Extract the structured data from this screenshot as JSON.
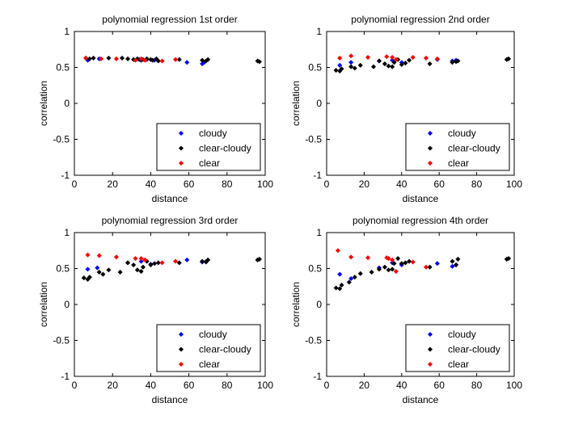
{
  "chart_data": [
    {
      "type": "scatter",
      "title": "polynomial regression 1st order",
      "xlabel": "distance",
      "ylabel": "correlation",
      "xlim": [
        0,
        100
      ],
      "ylim": [
        -1,
        1
      ],
      "xticks": [
        0,
        20,
        40,
        60,
        80,
        100
      ],
      "yticks": [
        -1,
        -0.5,
        0,
        0.5,
        1
      ],
      "grid": false,
      "legend_position": "bottom-right",
      "series": [
        {
          "name": "cloudy",
          "color": "#0000ff",
          "x": [
            7,
            13,
            34,
            38,
            42,
            59,
            67,
            68
          ],
          "y": [
            0.6,
            0.62,
            0.61,
            0.61,
            0.6,
            0.57,
            0.55,
            0.57
          ]
        },
        {
          "name": "clear-cloudy",
          "color": "#000000",
          "x": [
            6,
            8,
            10,
            18,
            25,
            28,
            31,
            33,
            35,
            36,
            38,
            40,
            41,
            43,
            44,
            55,
            67,
            69,
            70,
            96,
            97
          ],
          "y": [
            0.63,
            0.62,
            0.63,
            0.63,
            0.63,
            0.62,
            0.61,
            0.62,
            0.6,
            0.61,
            0.62,
            0.61,
            0.6,
            0.62,
            0.59,
            0.61,
            0.6,
            0.59,
            0.61,
            0.59,
            0.58
          ]
        },
        {
          "name": "clear",
          "color": "#ff0000",
          "x": [
            6,
            14,
            22,
            32,
            35,
            37,
            46,
            53
          ],
          "y": [
            0.63,
            0.62,
            0.62,
            0.6,
            0.62,
            0.6,
            0.59,
            0.61
          ]
        }
      ]
    },
    {
      "type": "scatter",
      "title": "polynomial regression 2nd order",
      "xlabel": "distance",
      "ylabel": "correlation",
      "xlim": [
        0,
        100
      ],
      "ylim": [
        -1,
        1
      ],
      "xticks": [
        0,
        20,
        40,
        60,
        80,
        100
      ],
      "yticks": [
        -1,
        -0.5,
        0,
        0.5,
        1
      ],
      "grid": false,
      "legend_position": "bottom-right",
      "series": [
        {
          "name": "cloudy",
          "color": "#0000ff",
          "x": [
            7,
            13,
            28,
            35,
            40,
            59,
            67,
            69
          ],
          "y": [
            0.53,
            0.57,
            0.59,
            0.6,
            0.57,
            0.61,
            0.59,
            0.6
          ]
        },
        {
          "name": "clear-cloudy",
          "color": "#000000",
          "x": [
            5,
            7,
            8,
            13,
            15,
            18,
            25,
            28,
            31,
            33,
            35,
            36,
            38,
            40,
            42,
            44,
            55,
            67,
            69,
            70,
            96,
            97
          ],
          "y": [
            0.46,
            0.45,
            0.48,
            0.51,
            0.49,
            0.53,
            0.51,
            0.59,
            0.55,
            0.52,
            0.51,
            0.57,
            0.61,
            0.54,
            0.56,
            0.6,
            0.55,
            0.57,
            0.58,
            0.59,
            0.61,
            0.62
          ]
        },
        {
          "name": "clear",
          "color": "#ff0000",
          "x": [
            7,
            13,
            22,
            32,
            35,
            37,
            46,
            53,
            59
          ],
          "y": [
            0.63,
            0.66,
            0.64,
            0.65,
            0.64,
            0.61,
            0.64,
            0.63,
            0.62
          ]
        }
      ]
    },
    {
      "type": "scatter",
      "title": "polynomial regression 3rd order",
      "xlabel": "distance",
      "ylabel": "correlation",
      "xlim": [
        0,
        100
      ],
      "ylim": [
        -1,
        1
      ],
      "xticks": [
        0,
        20,
        40,
        60,
        80,
        100
      ],
      "yticks": [
        -1,
        -0.5,
        0,
        0.5,
        1
      ],
      "grid": false,
      "legend_position": "bottom-right",
      "series": [
        {
          "name": "cloudy",
          "color": "#0000ff",
          "x": [
            7,
            12,
            28,
            35,
            40,
            59,
            67,
            69
          ],
          "y": [
            0.49,
            0.51,
            0.58,
            0.6,
            0.56,
            0.62,
            0.59,
            0.6
          ]
        },
        {
          "name": "clear-cloudy",
          "color": "#000000",
          "x": [
            5,
            7,
            8,
            13,
            15,
            18,
            24,
            28,
            31,
            33,
            35,
            36,
            38,
            40,
            42,
            44,
            55,
            67,
            69,
            70,
            96,
            97
          ],
          "y": [
            0.37,
            0.35,
            0.38,
            0.45,
            0.42,
            0.48,
            0.45,
            0.58,
            0.55,
            0.48,
            0.46,
            0.52,
            0.6,
            0.55,
            0.57,
            0.58,
            0.58,
            0.6,
            0.59,
            0.62,
            0.62,
            0.63
          ]
        },
        {
          "name": "clear",
          "color": "#ff0000",
          "x": [
            7,
            13,
            22,
            32,
            35,
            37,
            46,
            53
          ],
          "y": [
            0.69,
            0.68,
            0.66,
            0.64,
            0.64,
            0.62,
            0.58,
            0.6
          ]
        }
      ]
    },
    {
      "type": "scatter",
      "title": "polynomial regression 4th order",
      "xlabel": "distance",
      "ylabel": "correlation",
      "xlim": [
        0,
        100
      ],
      "ylim": [
        -1,
        1
      ],
      "xticks": [
        0,
        20,
        40,
        60,
        80,
        100
      ],
      "yticks": [
        -1,
        -0.5,
        0,
        0.5,
        1
      ],
      "grid": false,
      "legend_position": "bottom-right",
      "series": [
        {
          "name": "cloudy",
          "color": "#0000ff",
          "x": [
            7,
            13,
            28,
            35,
            40,
            59,
            67,
            69
          ],
          "y": [
            0.42,
            0.36,
            0.51,
            0.58,
            0.55,
            0.57,
            0.53,
            0.55
          ]
        },
        {
          "name": "clear-cloudy",
          "color": "#000000",
          "x": [
            5,
            7,
            8,
            12,
            15,
            18,
            24,
            28,
            31,
            33,
            35,
            36,
            38,
            40,
            42,
            44,
            55,
            67,
            69,
            70,
            96,
            97
          ],
          "y": [
            0.23,
            0.22,
            0.27,
            0.31,
            0.38,
            0.43,
            0.45,
            0.49,
            0.52,
            0.48,
            0.49,
            0.57,
            0.64,
            0.57,
            0.58,
            0.6,
            0.52,
            0.6,
            0.55,
            0.63,
            0.63,
            0.64
          ]
        },
        {
          "name": "clear",
          "color": "#ff0000",
          "x": [
            6,
            13,
            22,
            32,
            33,
            35,
            37,
            46,
            53
          ],
          "y": [
            0.75,
            0.66,
            0.65,
            0.65,
            0.64,
            0.62,
            0.46,
            0.59,
            0.52
          ]
        }
      ]
    }
  ]
}
